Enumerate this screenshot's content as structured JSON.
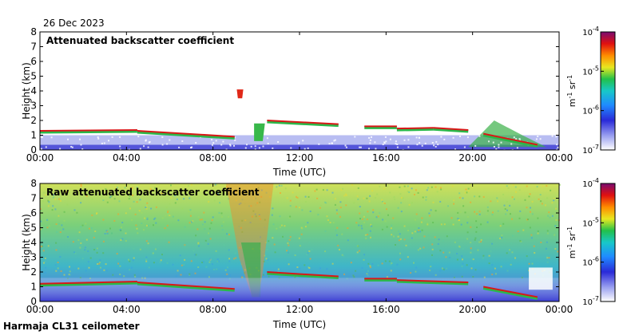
{
  "date": "26 Dec 2023",
  "instrument": "Harmaja CL31 ceilometer",
  "chart_data": [
    {
      "type": "heatmap",
      "title": "Attenuated backscatter coefficient",
      "xlabel": "Time (UTC)",
      "ylabel": "Height (km)",
      "xticks": [
        "00:00",
        "04:00",
        "08:00",
        "12:00",
        "16:00",
        "20:00",
        "00:00"
      ],
      "yticks": [
        "0",
        "1",
        "2",
        "3",
        "4",
        "5",
        "6",
        "7",
        "8"
      ],
      "xlim_hours": [
        0,
        24
      ],
      "ylim_km": [
        0,
        8
      ],
      "colorbar": {
        "label": "m-1 sr-1",
        "ticks": [
          "10-7",
          "10-6",
          "10-5",
          "10-4"
        ]
      },
      "cloud_layers": [
        {
          "t0": 0.0,
          "t1": 4.5,
          "h0": 1.3,
          "h1": 1.35
        },
        {
          "t0": 4.5,
          "t1": 9.0,
          "h0": 1.3,
          "h1": 0.9
        },
        {
          "t0": 10.5,
          "t1": 13.8,
          "h0": 2.0,
          "h1": 1.75
        },
        {
          "t0": 15.0,
          "t1": 16.5,
          "h0": 1.6,
          "h1": 1.6
        },
        {
          "t0": 16.5,
          "t1": 18.2,
          "h0": 1.45,
          "h1": 1.5
        },
        {
          "t0": 18.2,
          "t1": 19.8,
          "h0": 1.5,
          "h1": 1.35
        },
        {
          "t0": 20.5,
          "t1": 23.0,
          "h0": 1.1,
          "h1": 0.35
        }
      ]
    },
    {
      "type": "heatmap",
      "title": "Raw attenuated backscatter coefficient",
      "xlabel": "Time (UTC)",
      "ylabel": "Height (km)",
      "xticks": [
        "00:00",
        "04:00",
        "08:00",
        "12:00",
        "16:00",
        "20:00",
        "00:00"
      ],
      "yticks": [
        "0",
        "1",
        "2",
        "3",
        "4",
        "5",
        "6",
        "7",
        "8"
      ],
      "xlim_hours": [
        0,
        24
      ],
      "ylim_km": [
        0,
        8
      ],
      "colorbar": {
        "label": "m-1 sr-1",
        "ticks": [
          "10-7",
          "10-6",
          "10-5",
          "10-4"
        ]
      },
      "cloud_layers": [
        {
          "t0": 0.0,
          "t1": 4.5,
          "h0": 1.2,
          "h1": 1.35
        },
        {
          "t0": 4.5,
          "t1": 9.0,
          "h0": 1.3,
          "h1": 0.85
        },
        {
          "t0": 10.5,
          "t1": 13.8,
          "h0": 2.0,
          "h1": 1.7
        },
        {
          "t0": 15.0,
          "t1": 16.5,
          "h0": 1.55,
          "h1": 1.55
        },
        {
          "t0": 16.5,
          "t1": 19.8,
          "h0": 1.45,
          "h1": 1.3
        },
        {
          "t0": 20.5,
          "t1": 23.0,
          "h0": 1.0,
          "h1": 0.3
        }
      ]
    }
  ]
}
